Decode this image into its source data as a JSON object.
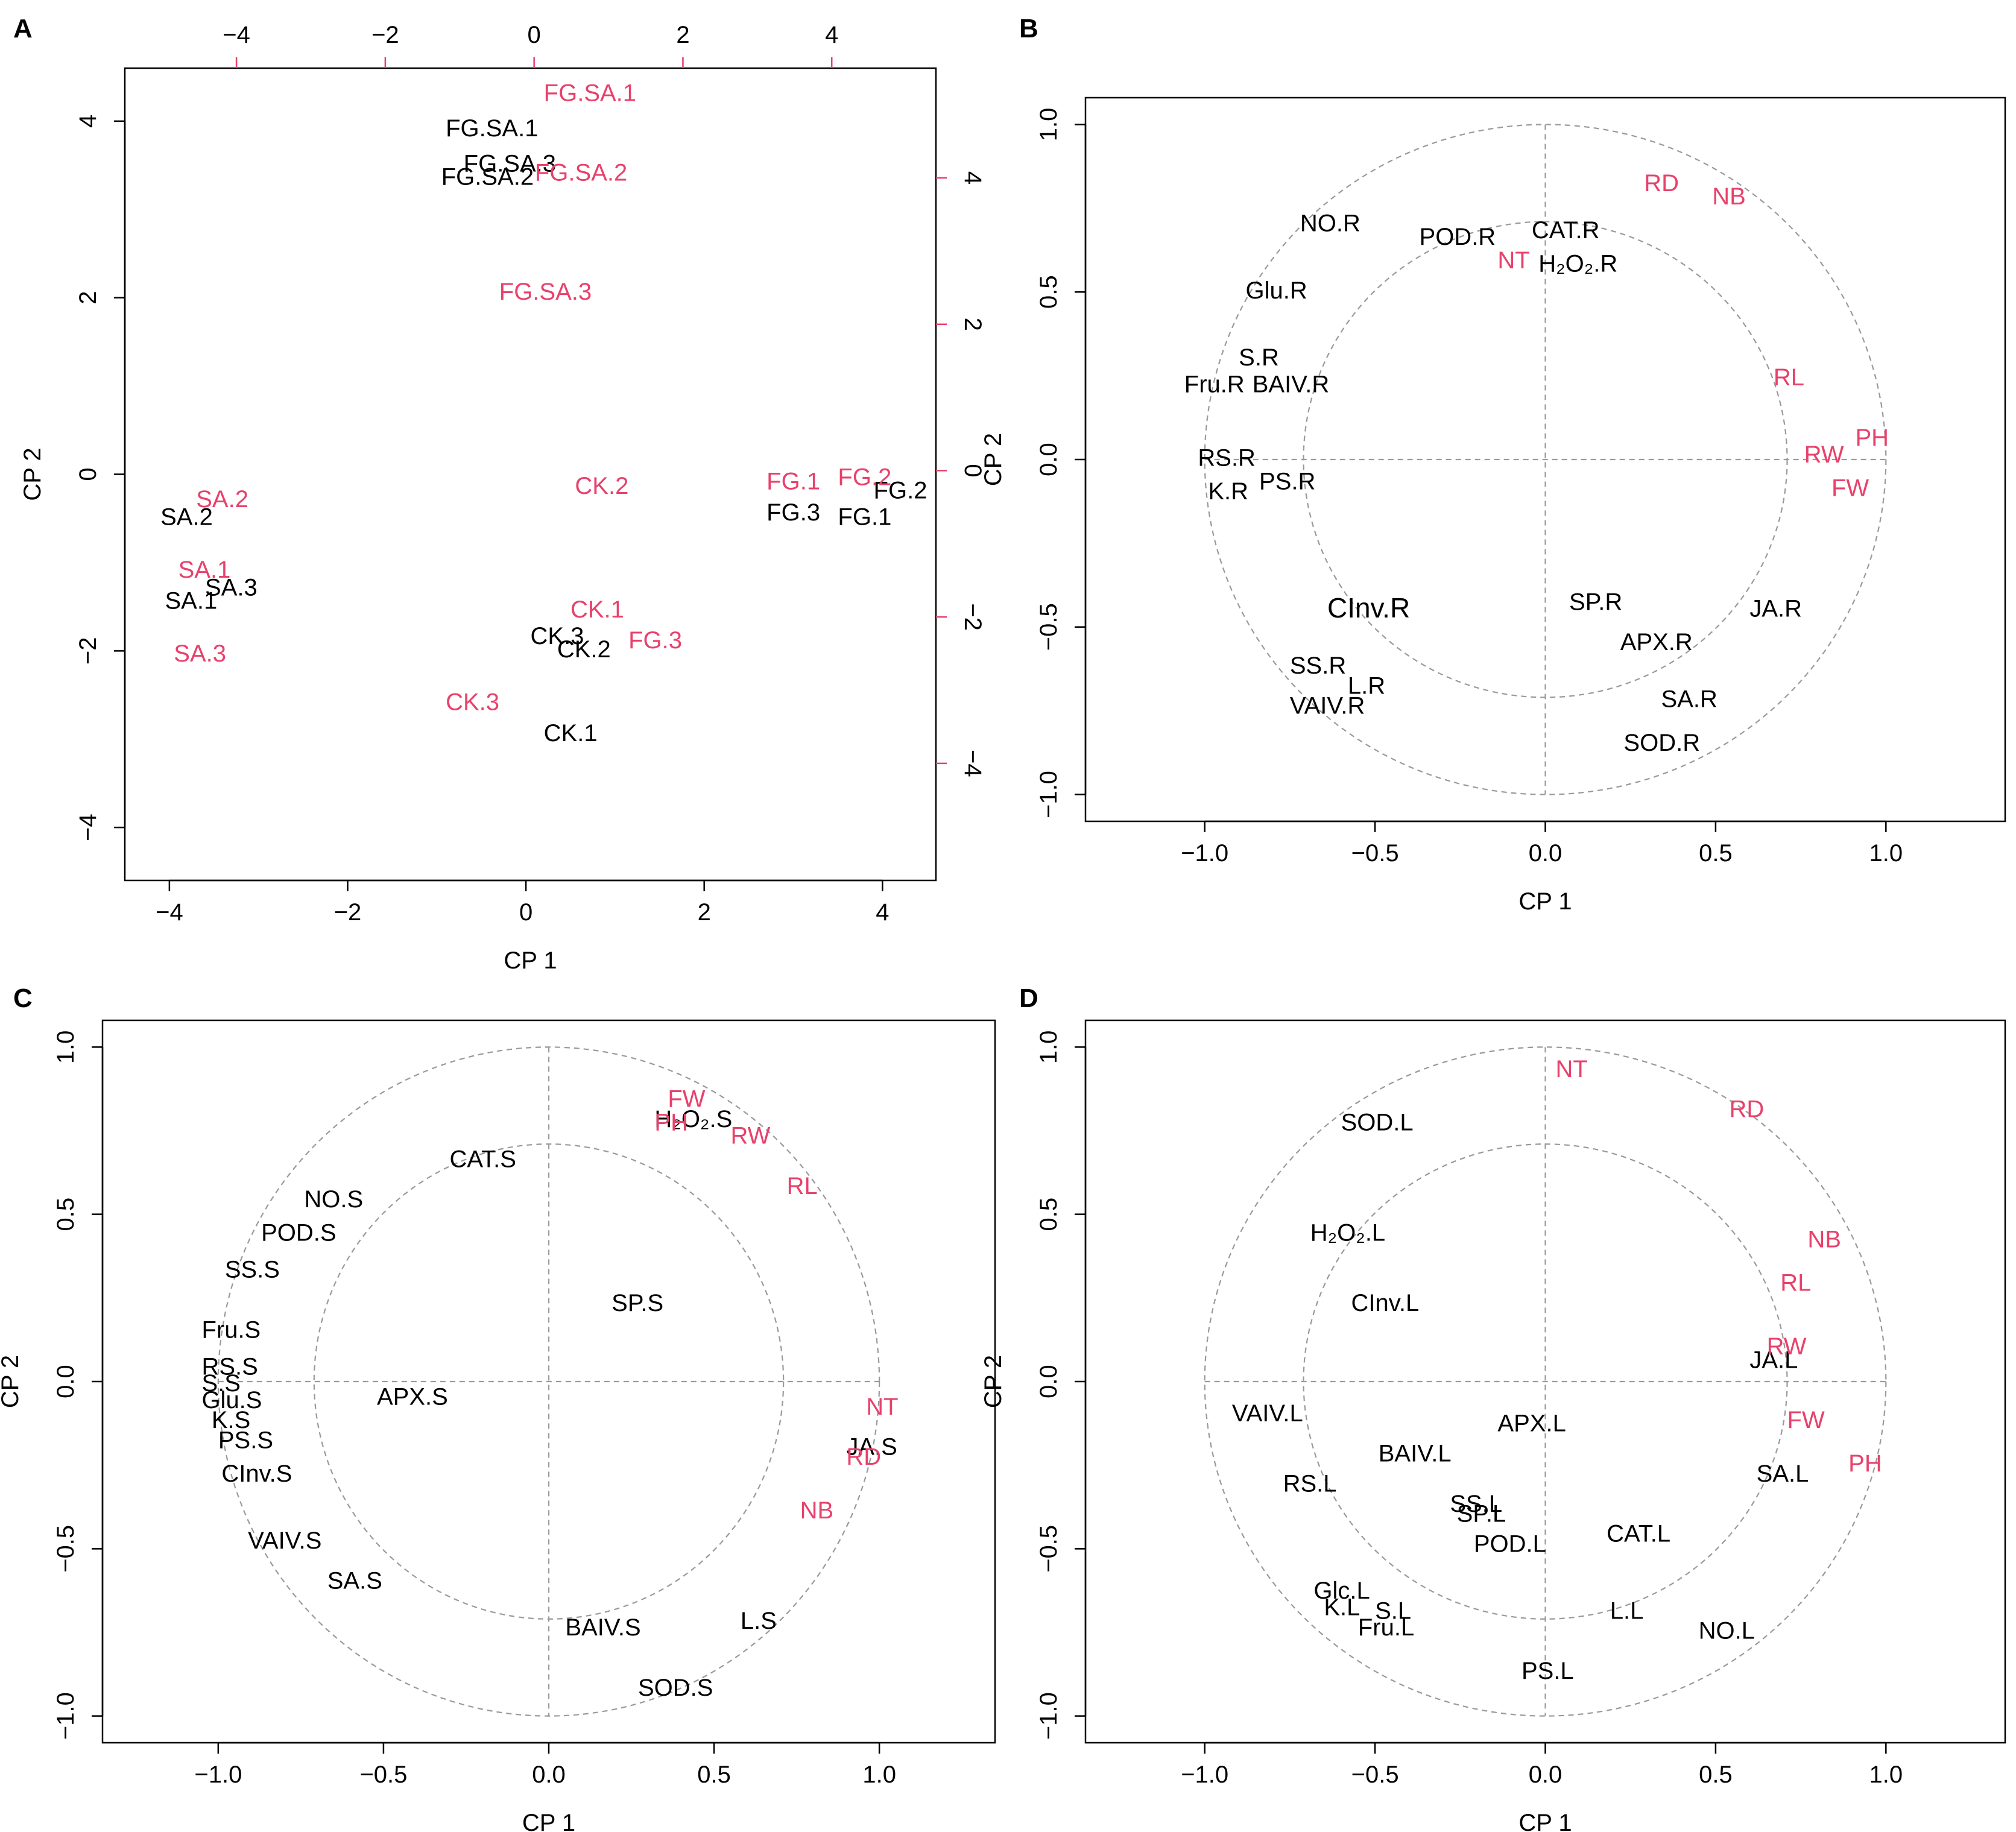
{
  "colors": {
    "black": "#000000",
    "red": "#e8416b",
    "dashed": "#9a9a9a"
  },
  "chart_data": [
    {
      "panel": "A",
      "type": "scatter",
      "xlabel": "CP 1",
      "ylabel": "CP 2",
      "xlim": [
        -4.5,
        4.6
      ],
      "ylim": [
        -4.6,
        4.6
      ],
      "xticks": [
        -4,
        -2,
        0,
        2,
        4
      ],
      "yticks": [
        -4,
        -2,
        0,
        2,
        4
      ],
      "top_axis": {
        "lim": [
          -5.5,
          5.4
        ],
        "ticks": [
          -4,
          -2,
          0,
          2,
          4
        ]
      },
      "right_axis": {
        "lim": [
          -5.6,
          5.5
        ],
        "ticks": [
          -4,
          -2,
          0,
          2,
          4
        ]
      },
      "points": [
        {
          "label": "FG.SA.1",
          "x": -0.9,
          "y": 3.9,
          "color": "black"
        },
        {
          "label": "FG.SA.3",
          "x": -0.7,
          "y": 3.5,
          "color": "black"
        },
        {
          "label": "FG.SA.2",
          "x": -0.95,
          "y": 3.35,
          "color": "black"
        },
        {
          "label": "SA.2",
          "x": -4.1,
          "y": -0.5,
          "color": "black"
        },
        {
          "label": "SA.3",
          "x": -3.6,
          "y": -1.3,
          "color": "black"
        },
        {
          "label": "SA.1",
          "x": -4.05,
          "y": -1.45,
          "color": "black"
        },
        {
          "label": "FG.2",
          "x": 3.9,
          "y": -0.2,
          "color": "black"
        },
        {
          "label": "FG.3",
          "x": 2.7,
          "y": -0.45,
          "color": "black"
        },
        {
          "label": "FG.1",
          "x": 3.5,
          "y": -0.5,
          "color": "black"
        },
        {
          "label": "CK.3",
          "x": 0.05,
          "y": -1.85,
          "color": "black"
        },
        {
          "label": "CK.2",
          "x": 0.35,
          "y": -2.0,
          "color": "black"
        },
        {
          "label": "CK.1",
          "x": 0.2,
          "y": -2.95,
          "color": "black"
        },
        {
          "label": "FG.SA.1",
          "x": 0.2,
          "y": 4.3,
          "color": "red"
        },
        {
          "label": "FG.SA.2",
          "x": 0.1,
          "y": 3.4,
          "color": "red"
        },
        {
          "label": "FG.SA.3",
          "x": -0.3,
          "y": 2.05,
          "color": "red"
        },
        {
          "label": "CK.2",
          "x": 0.55,
          "y": -0.15,
          "color": "red"
        },
        {
          "label": "FG.1",
          "x": 2.7,
          "y": -0.1,
          "color": "red"
        },
        {
          "label": "FG.2",
          "x": 3.5,
          "y": -0.05,
          "color": "red"
        },
        {
          "label": "SA.2",
          "x": -3.7,
          "y": -0.3,
          "color": "red"
        },
        {
          "label": "SA.1",
          "x": -3.9,
          "y": -1.1,
          "color": "red"
        },
        {
          "label": "SA.3",
          "x": -3.95,
          "y": -2.05,
          "color": "red"
        },
        {
          "label": "CK.1",
          "x": 0.5,
          "y": -1.55,
          "color": "red"
        },
        {
          "label": "FG.3",
          "x": 1.15,
          "y": -1.9,
          "color": "red"
        },
        {
          "label": "CK.3",
          "x": -0.9,
          "y": -2.6,
          "color": "red"
        }
      ]
    },
    {
      "panel": "B",
      "type": "scatter",
      "xlabel": "CP 1",
      "ylabel": "CP 2",
      "xlim": [
        -1.35,
        1.35
      ],
      "ylim": [
        -1.08,
        1.08
      ],
      "xticks": [
        -1.0,
        -0.5,
        0.0,
        0.5,
        1.0
      ],
      "yticks": [
        -1.0,
        -0.5,
        0.0,
        0.5,
        1.0
      ],
      "circles": [
        1.0,
        0.71
      ],
      "points": [
        {
          "label": "NO.R",
          "x": -0.72,
          "y": 0.7,
          "color": "black"
        },
        {
          "label": "POD.R",
          "x": -0.37,
          "y": 0.66,
          "color": "black"
        },
        {
          "label": "CAT.R",
          "x": -0.04,
          "y": 0.68,
          "color": "black"
        },
        {
          "label": "H₂O₂.R",
          "x": -0.02,
          "y": 0.58,
          "color": "black"
        },
        {
          "label": "Glu.R",
          "x": -0.88,
          "y": 0.5,
          "color": "black"
        },
        {
          "label": "S.R",
          "x": -0.9,
          "y": 0.3,
          "color": "black"
        },
        {
          "label": "Fru.R",
          "x": -1.06,
          "y": 0.22,
          "color": "black"
        },
        {
          "label": "BAIV.R",
          "x": -0.86,
          "y": 0.22,
          "color": "black"
        },
        {
          "label": "RS.R",
          "x": -1.02,
          "y": 0.0,
          "color": "black"
        },
        {
          "label": "PS.R",
          "x": -0.84,
          "y": -0.07,
          "color": "black"
        },
        {
          "label": "K.R",
          "x": -0.99,
          "y": -0.1,
          "color": "black"
        },
        {
          "label": "CInv.R",
          "x": -0.64,
          "y": -0.45,
          "color": "black",
          "big": true
        },
        {
          "label": "SP.R",
          "x": 0.07,
          "y": -0.43,
          "color": "black"
        },
        {
          "label": "JA.R",
          "x": 0.6,
          "y": -0.45,
          "color": "black"
        },
        {
          "label": "APX.R",
          "x": 0.22,
          "y": -0.55,
          "color": "black"
        },
        {
          "label": "SS.R",
          "x": -0.75,
          "y": -0.62,
          "color": "black"
        },
        {
          "label": "L.R",
          "x": -0.58,
          "y": -0.68,
          "color": "black"
        },
        {
          "label": "VAIV.R",
          "x": -0.75,
          "y": -0.74,
          "color": "black"
        },
        {
          "label": "SA.R",
          "x": 0.34,
          "y": -0.72,
          "color": "black"
        },
        {
          "label": "SOD.R",
          "x": 0.23,
          "y": -0.85,
          "color": "black"
        },
        {
          "label": "RD",
          "x": 0.29,
          "y": 0.82,
          "color": "red"
        },
        {
          "label": "NB",
          "x": 0.49,
          "y": 0.78,
          "color": "red"
        },
        {
          "label": "NT",
          "x": -0.14,
          "y": 0.59,
          "color": "red"
        },
        {
          "label": "RL",
          "x": 0.67,
          "y": 0.24,
          "color": "red"
        },
        {
          "label": "PH",
          "x": 0.91,
          "y": 0.06,
          "color": "red"
        },
        {
          "label": "RW",
          "x": 0.76,
          "y": 0.01,
          "color": "red"
        },
        {
          "label": "FW",
          "x": 0.84,
          "y": -0.09,
          "color": "red"
        }
      ]
    },
    {
      "panel": "C",
      "type": "scatter",
      "xlabel": "CP 1",
      "ylabel": "CP 2",
      "xlim": [
        -1.35,
        1.35
      ],
      "ylim": [
        -1.08,
        1.08
      ],
      "xticks": [
        -1.0,
        -0.5,
        0.0,
        0.5,
        1.0
      ],
      "yticks": [
        -1.0,
        -0.5,
        0.0,
        0.5,
        1.0
      ],
      "circles": [
        1.0,
        0.71
      ],
      "points": [
        {
          "label": "CAT.S",
          "x": -0.3,
          "y": 0.66,
          "color": "black"
        },
        {
          "label": "H₂O₂.S",
          "x": 0.32,
          "y": 0.78,
          "color": "black"
        },
        {
          "label": "NO.S",
          "x": -0.74,
          "y": 0.54,
          "color": "black"
        },
        {
          "label": "POD.S",
          "x": -0.87,
          "y": 0.44,
          "color": "black"
        },
        {
          "label": "SS.S",
          "x": -0.98,
          "y": 0.33,
          "color": "black"
        },
        {
          "label": "SP.S",
          "x": 0.19,
          "y": 0.23,
          "color": "black"
        },
        {
          "label": "Fru.S",
          "x": -1.05,
          "y": 0.15,
          "color": "black"
        },
        {
          "label": "RS.S",
          "x": -1.05,
          "y": 0.04,
          "color": "black"
        },
        {
          "label": "S.S",
          "x": -1.05,
          "y": -0.01,
          "color": "black"
        },
        {
          "label": "Glu.S",
          "x": -1.05,
          "y": -0.06,
          "color": "black"
        },
        {
          "label": "K.S",
          "x": -1.02,
          "y": -0.12,
          "color": "black"
        },
        {
          "label": "PS.S",
          "x": -1.0,
          "y": -0.18,
          "color": "black"
        },
        {
          "label": "APX.S",
          "x": -0.52,
          "y": -0.05,
          "color": "black"
        },
        {
          "label": "CInv.S",
          "x": -0.99,
          "y": -0.28,
          "color": "black"
        },
        {
          "label": "JA.S",
          "x": 0.9,
          "y": -0.2,
          "color": "black"
        },
        {
          "label": "VAIV.S",
          "x": -0.91,
          "y": -0.48,
          "color": "black"
        },
        {
          "label": "SA.S",
          "x": -0.67,
          "y": -0.6,
          "color": "black"
        },
        {
          "label": "BAIV.S",
          "x": 0.05,
          "y": -0.74,
          "color": "black"
        },
        {
          "label": "L.S",
          "x": 0.58,
          "y": -0.72,
          "color": "black"
        },
        {
          "label": "SOD.S",
          "x": 0.27,
          "y": -0.92,
          "color": "black"
        },
        {
          "label": "FW",
          "x": 0.36,
          "y": 0.84,
          "color": "red"
        },
        {
          "label": "PH",
          "x": 0.32,
          "y": 0.77,
          "color": "red"
        },
        {
          "label": "RW",
          "x": 0.55,
          "y": 0.73,
          "color": "red"
        },
        {
          "label": "RL",
          "x": 0.72,
          "y": 0.58,
          "color": "red"
        },
        {
          "label": "NT",
          "x": 0.96,
          "y": -0.08,
          "color": "red"
        },
        {
          "label": "RD",
          "x": 0.9,
          "y": -0.23,
          "color": "red"
        },
        {
          "label": "NB",
          "x": 0.76,
          "y": -0.39,
          "color": "red"
        }
      ]
    },
    {
      "panel": "D",
      "type": "scatter",
      "xlabel": "CP 1",
      "ylabel": "CP 2",
      "xlim": [
        -1.35,
        1.35
      ],
      "ylim": [
        -1.08,
        1.08
      ],
      "xticks": [
        -1.0,
        -0.5,
        0.0,
        0.5,
        1.0
      ],
      "yticks": [
        -1.0,
        -0.5,
        0.0,
        0.5,
        1.0
      ],
      "circles": [
        1.0,
        0.71
      ],
      "points": [
        {
          "label": "SOD.L",
          "x": -0.6,
          "y": 0.77,
          "color": "black"
        },
        {
          "label": "H₂O₂.L",
          "x": -0.69,
          "y": 0.44,
          "color": "black"
        },
        {
          "label": "CInv.L",
          "x": -0.57,
          "y": 0.23,
          "color": "black"
        },
        {
          "label": "JA.L",
          "x": 0.6,
          "y": 0.06,
          "color": "black"
        },
        {
          "label": "VAIV.L",
          "x": -0.92,
          "y": -0.1,
          "color": "black"
        },
        {
          "label": "APX.L",
          "x": -0.14,
          "y": -0.13,
          "color": "black"
        },
        {
          "label": "BAIV.L",
          "x": -0.49,
          "y": -0.22,
          "color": "black"
        },
        {
          "label": "RS.L",
          "x": -0.77,
          "y": -0.31,
          "color": "black"
        },
        {
          "label": "SA.L",
          "x": 0.62,
          "y": -0.28,
          "color": "black"
        },
        {
          "label": "SS.L",
          "x": -0.28,
          "y": -0.37,
          "color": "black"
        },
        {
          "label": "SP.L",
          "x": -0.26,
          "y": -0.4,
          "color": "black"
        },
        {
          "label": "CAT.L",
          "x": 0.18,
          "y": -0.46,
          "color": "black"
        },
        {
          "label": "POD.L",
          "x": -0.21,
          "y": -0.49,
          "color": "black"
        },
        {
          "label": "Glc.L",
          "x": -0.68,
          "y": -0.63,
          "color": "black"
        },
        {
          "label": "K.L",
          "x": -0.65,
          "y": -0.68,
          "color": "black"
        },
        {
          "label": "S.L",
          "x": -0.5,
          "y": -0.69,
          "color": "black"
        },
        {
          "label": "L.L",
          "x": 0.19,
          "y": -0.69,
          "color": "black"
        },
        {
          "label": "Fru.L",
          "x": -0.55,
          "y": -0.74,
          "color": "black"
        },
        {
          "label": "NO.L",
          "x": 0.45,
          "y": -0.75,
          "color": "black"
        },
        {
          "label": "PS.L",
          "x": -0.07,
          "y": -0.87,
          "color": "black"
        },
        {
          "label": "NT",
          "x": 0.03,
          "y": 0.93,
          "color": "red"
        },
        {
          "label": "RD",
          "x": 0.54,
          "y": 0.81,
          "color": "red"
        },
        {
          "label": "NB",
          "x": 0.77,
          "y": 0.42,
          "color": "red"
        },
        {
          "label": "RL",
          "x": 0.69,
          "y": 0.29,
          "color": "red"
        },
        {
          "label": "RW",
          "x": 0.65,
          "y": 0.1,
          "color": "red"
        },
        {
          "label": "FW",
          "x": 0.71,
          "y": -0.12,
          "color": "red"
        },
        {
          "label": "PH",
          "x": 0.89,
          "y": -0.25,
          "color": "red"
        }
      ]
    }
  ]
}
